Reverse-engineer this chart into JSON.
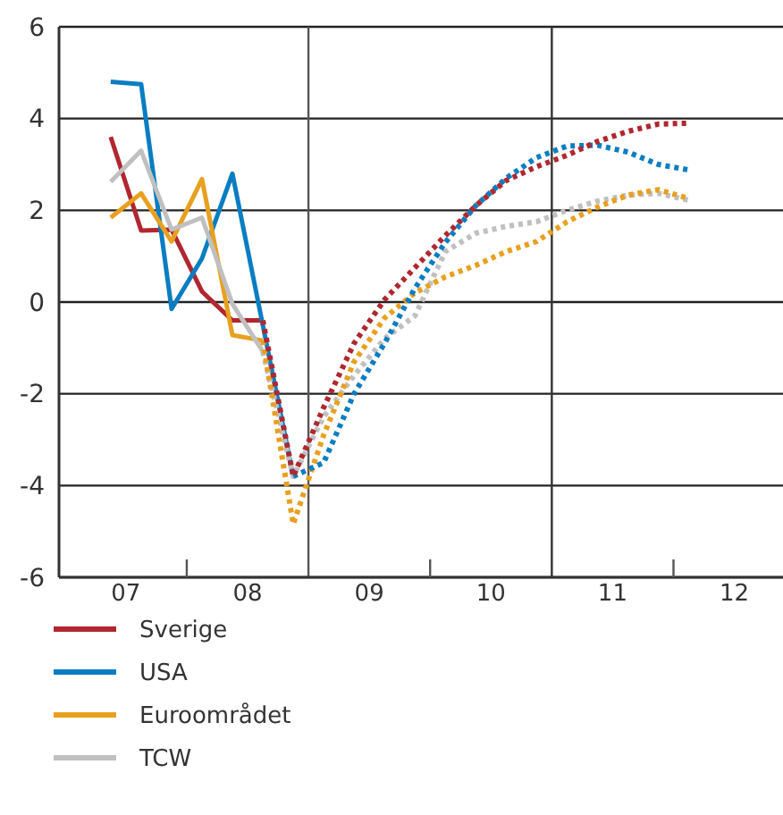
{
  "chart_data": {
    "type": "line",
    "xlim": [
      6.45,
      12.4
    ],
    "xticks": [
      {
        "value": 7,
        "label": "07"
      },
      {
        "value": 8,
        "label": "08"
      },
      {
        "value": 9,
        "label": "09"
      },
      10,
      11,
      12,
      {
        "value": 7.5,
        "label": null
      },
      {
        "value": 9.5,
        "label": null
      },
      {
        "value": 11.5,
        "label": null
      }
    ],
    "ylim": [
      -6,
      6
    ],
    "yticks": [
      -6,
      -4,
      -2,
      0,
      2,
      4,
      6
    ],
    "grid": "y",
    "legend": "bottom",
    "ref_lines": [
      {
        "axis": "x",
        "value": 8.5,
        "label": null,
        "color": "#555555"
      },
      {
        "axis": "x",
        "value": 10.5,
        "label": null,
        "color": "#333333"
      }
    ],
    "series": [
      {
        "name": "Sverige",
        "color": "#b0272f",
        "line_style": "solid",
        "x": [
          6.875,
          7.125,
          7.375,
          7.625,
          7.875,
          8.125
        ],
        "values": [
          3.6,
          1.56,
          1.58,
          0.23,
          -0.4,
          -0.4
        ]
      },
      {
        "name": "USA",
        "color": "#0a7dc2",
        "line_style": "solid",
        "x": [
          6.875,
          7.125,
          7.375,
          7.625,
          7.875,
          8.125,
          8.375
        ],
        "values": [
          4.8,
          4.75,
          -0.15,
          0.95,
          2.8,
          -0.5,
          -3.8
        ]
      },
      {
        "name": "Euroområdet",
        "color": "#e8a020",
        "line_style": "solid",
        "x": [
          6.875,
          7.125,
          7.375,
          7.625,
          7.875,
          8.125
        ],
        "values": [
          1.84,
          2.37,
          1.32,
          2.68,
          -0.72,
          -0.84
        ]
      },
      {
        "name": "TCW",
        "color": "#c0c0c0",
        "line_style": "solid",
        "x": [
          6.875,
          7.125,
          7.375,
          7.625,
          7.875,
          8.125
        ],
        "values": [
          2.62,
          3.3,
          1.58,
          1.84,
          -0.04,
          -1.08
        ]
      },
      {
        "color": "#c0c0c0",
        "line_style": "dotted",
        "x": [
          8.125,
          8.375,
          8.625,
          8.875,
          9.125,
          9.375,
          9.625,
          9.875,
          10.125,
          10.375,
          10.625,
          10.875,
          11.125,
          11.375,
          11.625
        ],
        "values": [
          -1.08,
          -3.8,
          -2.5,
          -1.6,
          -0.8,
          -0.3,
          1.1,
          1.5,
          1.65,
          1.75,
          2.0,
          2.2,
          2.33,
          2.37,
          2.22
        ]
      },
      {
        "color": "#e8a020",
        "line_style": "dotted",
        "x": [
          8.125,
          8.375,
          8.625,
          8.875,
          9.125,
          9.375,
          9.625,
          9.875,
          10.125,
          10.375,
          10.625,
          10.875,
          11.125,
          11.375,
          11.625
        ],
        "values": [
          -0.84,
          -4.84,
          -2.9,
          -1.3,
          -0.35,
          0.2,
          0.55,
          0.8,
          1.1,
          1.32,
          1.75,
          2.07,
          2.33,
          2.45,
          2.26
        ]
      },
      {
        "color": "#0a7dc2",
        "line_style": "dotted",
        "x": [
          8.375,
          8.625,
          8.875,
          9.125,
          9.375,
          9.625,
          9.875,
          10.125,
          10.375,
          10.625,
          10.875,
          11.125,
          11.375,
          11.625
        ],
        "values": [
          -3.8,
          -3.5,
          -2.0,
          -0.9,
          0.3,
          1.3,
          2.1,
          2.7,
          3.15,
          3.4,
          3.42,
          3.27,
          3.0,
          2.88
        ]
      },
      {
        "color": "#b0272f",
        "line_style": "dotted",
        "x": [
          8.125,
          8.375,
          8.625,
          8.875,
          9.125,
          9.375,
          9.625,
          9.875,
          10.125,
          10.375,
          10.625,
          10.875,
          11.125,
          11.375,
          11.625
        ],
        "values": [
          -0.4,
          -3.8,
          -2.3,
          -0.9,
          0.05,
          0.75,
          1.45,
          2.1,
          2.65,
          2.95,
          3.2,
          3.5,
          3.72,
          3.88,
          3.9
        ]
      }
    ]
  }
}
